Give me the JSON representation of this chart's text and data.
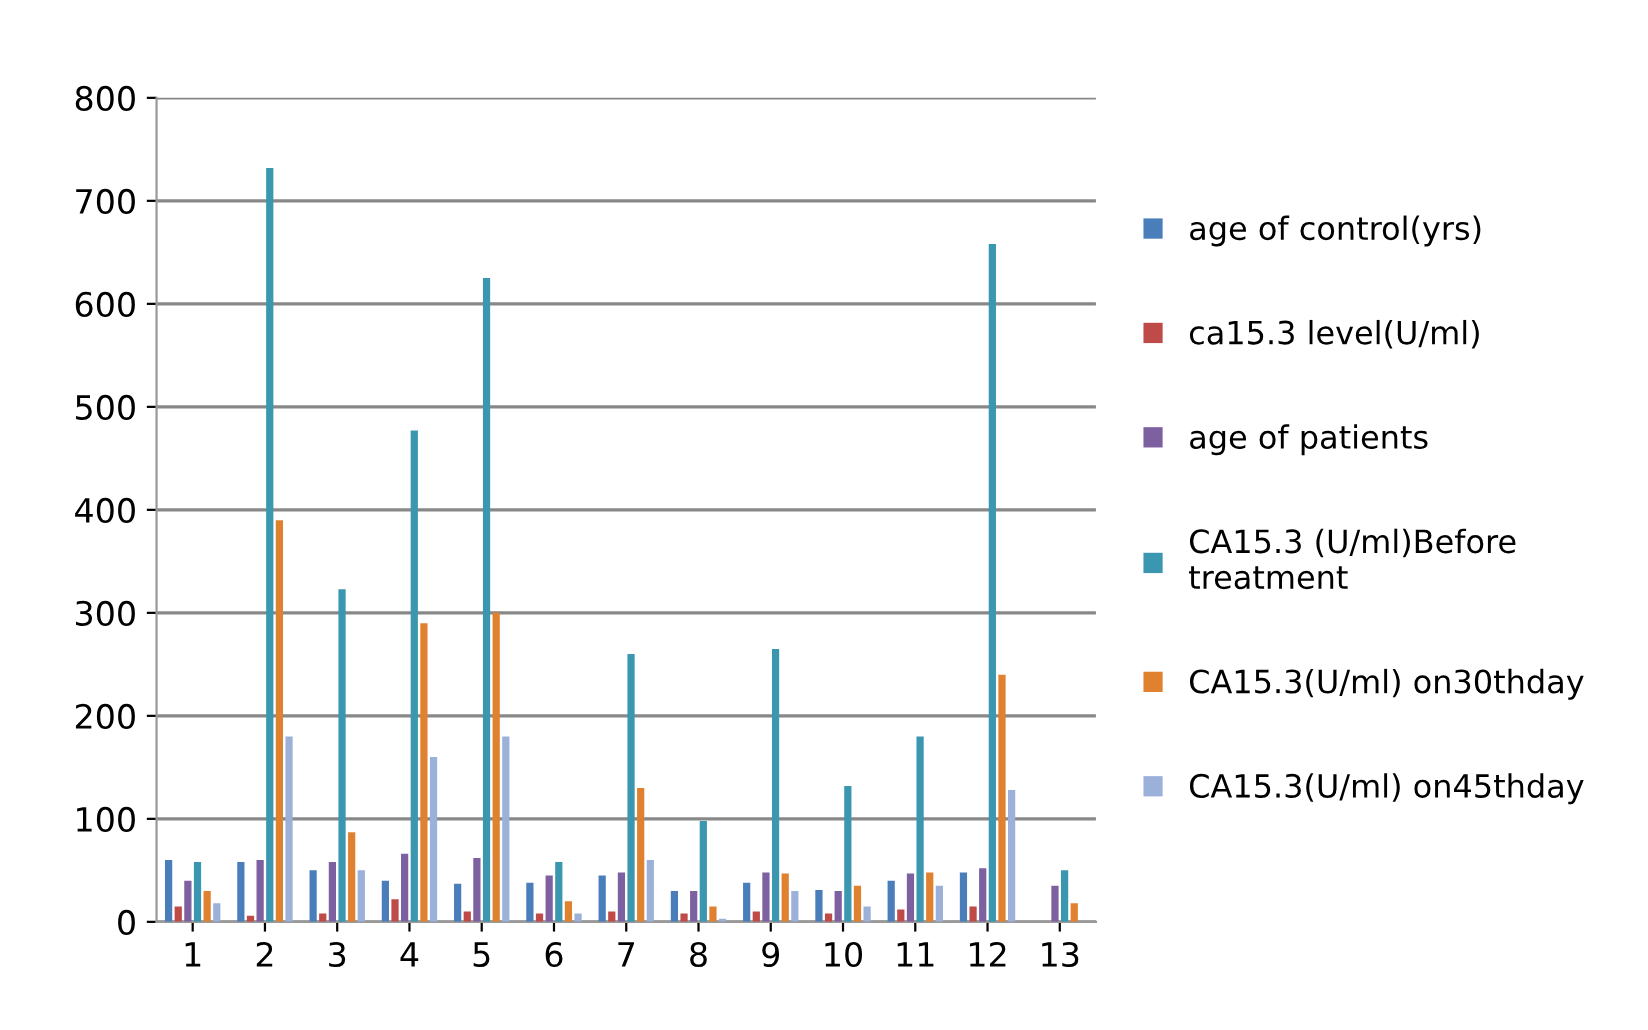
{
  "chart_data": {
    "type": "bar",
    "categories": [
      "1",
      "2",
      "3",
      "4",
      "5",
      "6",
      "7",
      "8",
      "9",
      "10",
      "11",
      "12",
      "13"
    ],
    "series": [
      {
        "name": "age of control(yrs)",
        "color": "#4a7ebb",
        "values": [
          60,
          58,
          50,
          40,
          37,
          38,
          45,
          30,
          38,
          31,
          40,
          48,
          null
        ]
      },
      {
        "name": "ca15.3 level(U/ml)",
        "color": "#be4b48",
        "values": [
          15,
          6,
          8,
          22,
          10,
          8,
          10,
          8,
          10,
          8,
          12,
          15,
          null
        ]
      },
      {
        "name": "age of patients",
        "color": "#7d60a0",
        "values": [
          40,
          60,
          58,
          66,
          62,
          45,
          48,
          30,
          48,
          30,
          47,
          52,
          35
        ]
      },
      {
        "name": "CA15.3 (U/ml)Before treatment",
        "color": "#3b96b0",
        "values": [
          58,
          732,
          323,
          477,
          625,
          58,
          260,
          98,
          265,
          132,
          180,
          658,
          50
        ]
      },
      {
        "name": "CA15.3(U/ml) on30thday",
        "color": "#e0812f",
        "values": [
          30,
          390,
          87,
          290,
          300,
          20,
          130,
          15,
          47,
          35,
          48,
          240,
          18
        ]
      },
      {
        "name": "CA15.3(U/ml) on45thday",
        "color": "#9bb1d9",
        "values": [
          18,
          180,
          50,
          160,
          180,
          8,
          60,
          3,
          30,
          15,
          35,
          128,
          null
        ]
      }
    ],
    "ylim": [
      0,
      800
    ],
    "yticks": [
      0,
      100,
      200,
      300,
      400,
      500,
      600,
      700,
      800
    ],
    "grid": "y",
    "legend": "right"
  }
}
